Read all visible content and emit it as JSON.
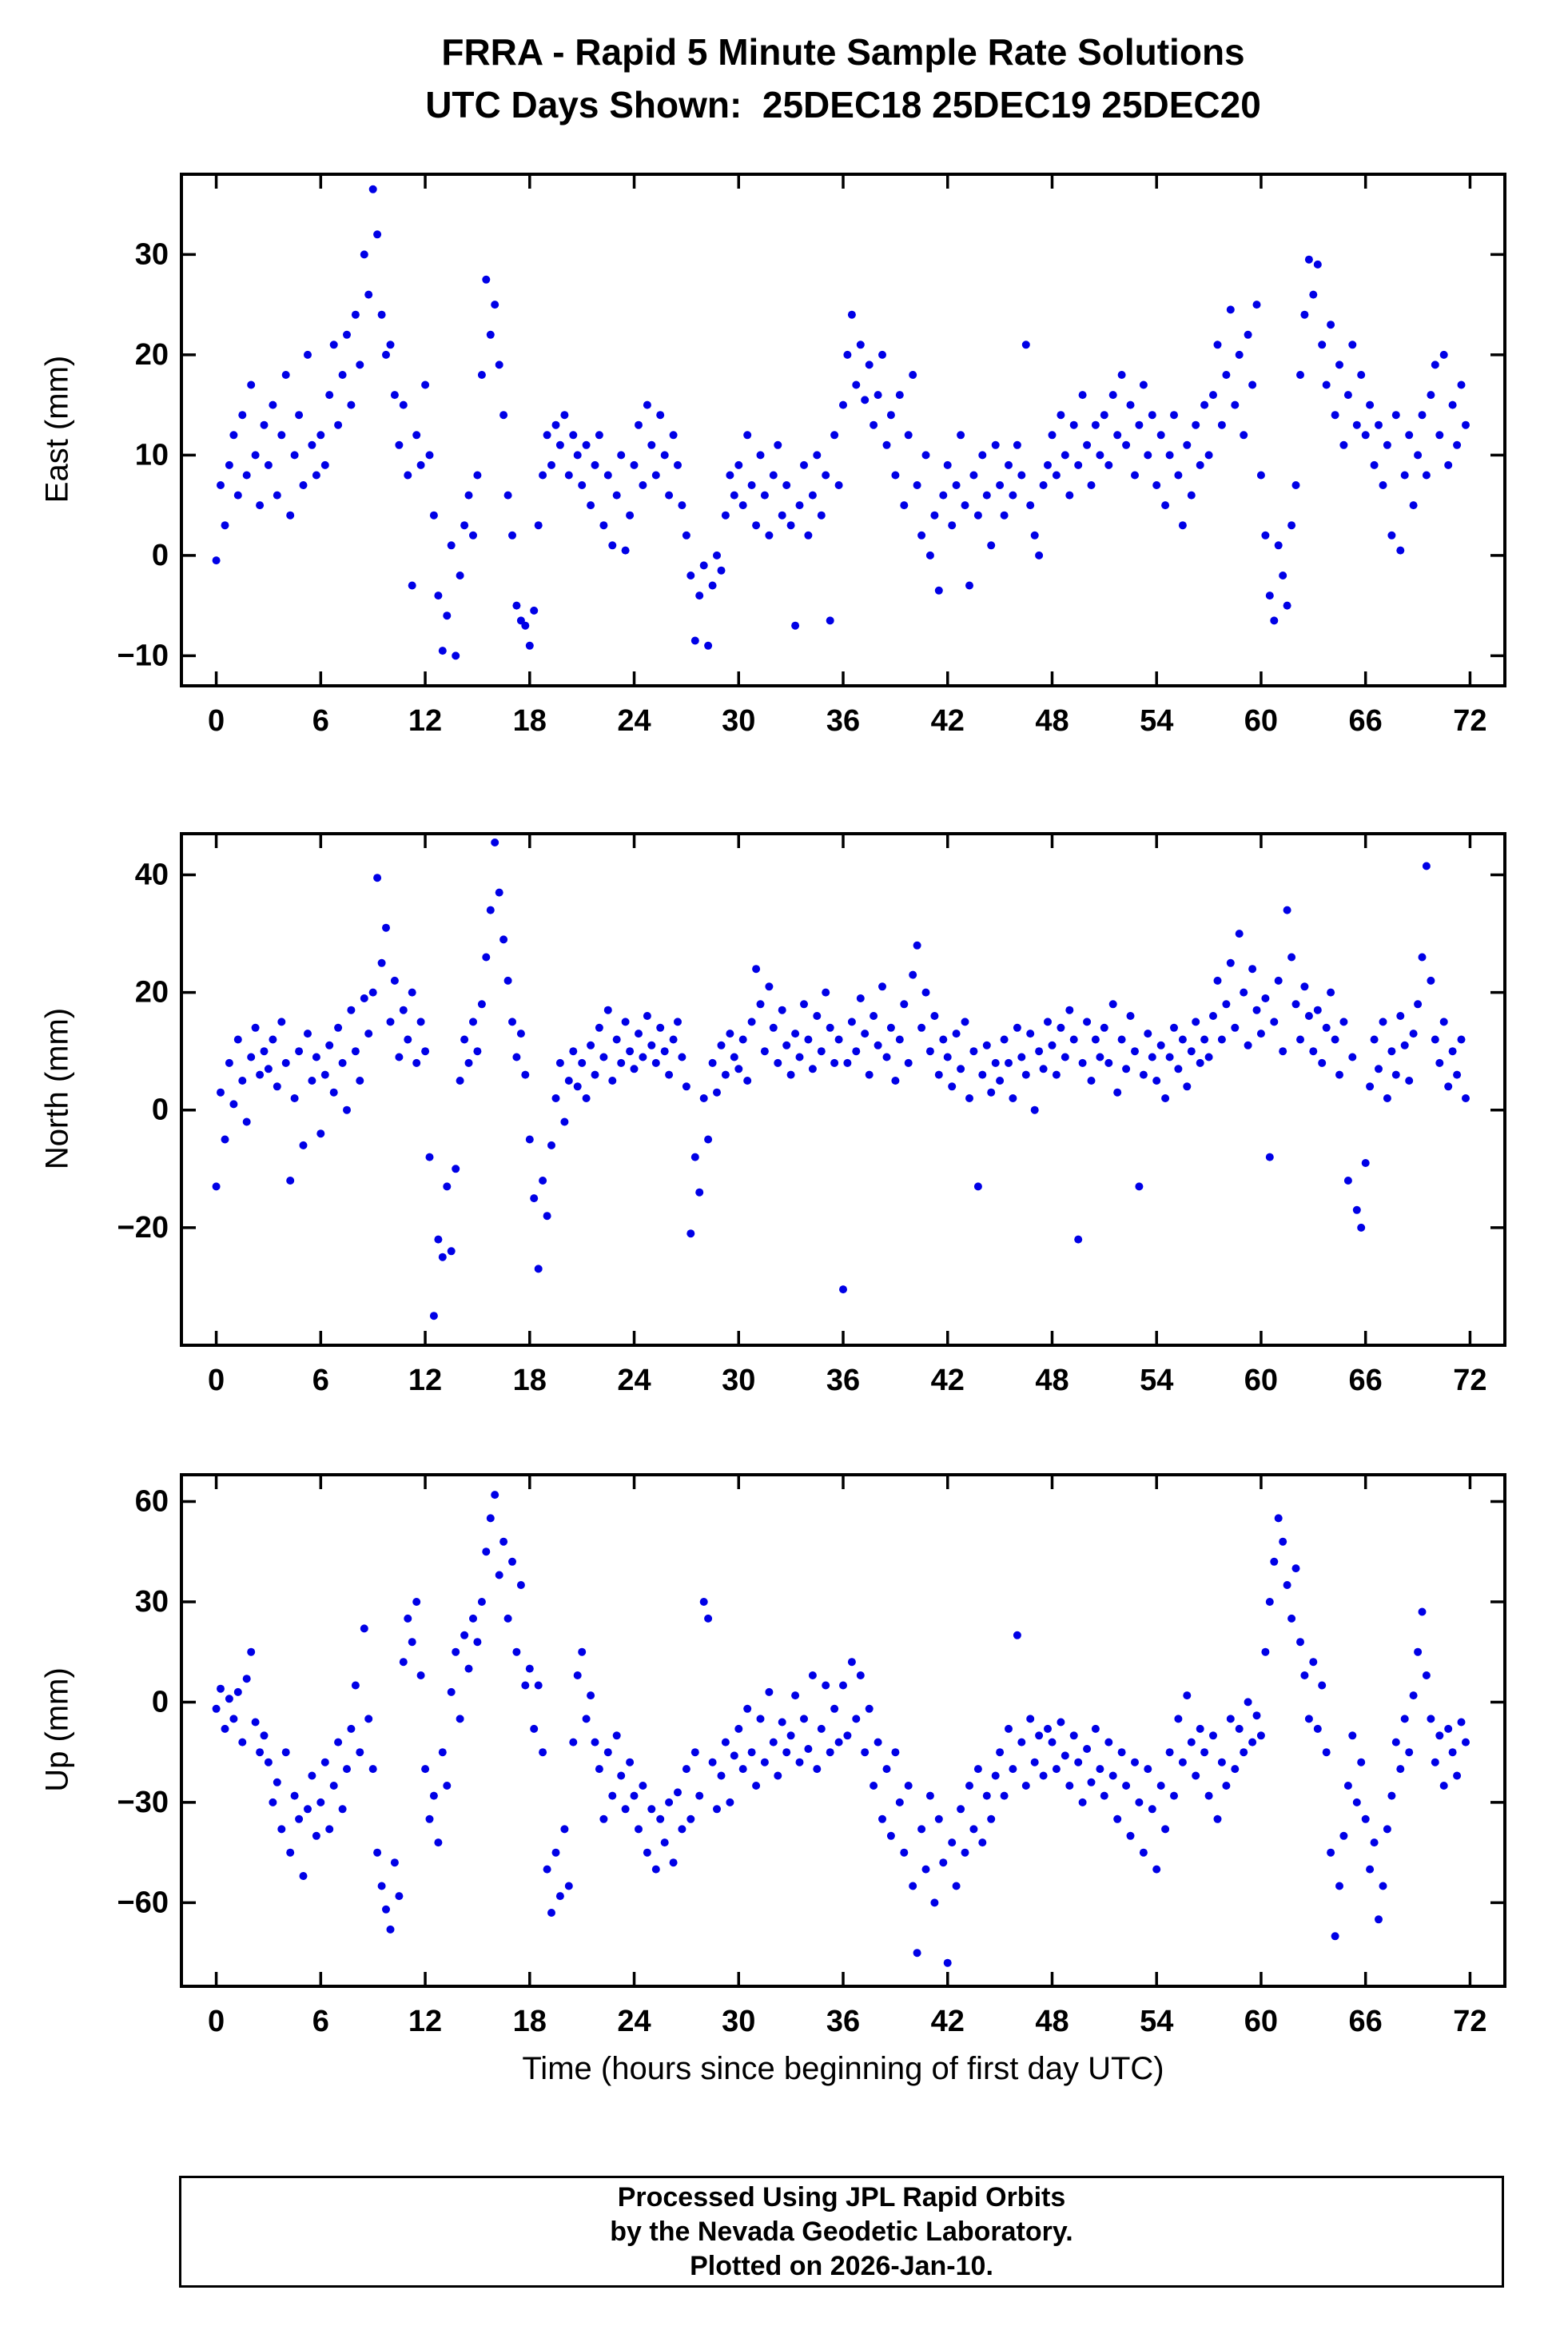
{
  "title": "FRRA - Rapid 5 Minute Sample Rate Solutions",
  "subtitle": "UTC Days Shown:  25DEC18 25DEC19 25DEC20",
  "footer": {
    "line1": "Processed Using JPL Rapid Orbits",
    "line2": "by the Nevada Geodetic Laboratory.",
    "line3": "Plotted on 2026-Jan-10."
  },
  "colors": {
    "points": "#0000e6",
    "axis": "#000000"
  },
  "x_axis": {
    "label": "Time (hours since beginning of first day UTC)",
    "ticks": [
      0,
      6,
      12,
      18,
      24,
      30,
      36,
      42,
      48,
      54,
      60,
      66,
      72
    ],
    "lim": [
      -2,
      74
    ]
  },
  "chart_data": [
    {
      "type": "scatter",
      "name": "east",
      "ylabel": "East (mm)",
      "ylim": [
        -13,
        38
      ],
      "yticks": [
        -10,
        0,
        10,
        20,
        30
      ],
      "x_start": 0,
      "dx": 0.25,
      "values": [
        -0.5,
        7,
        3,
        9,
        12,
        6,
        14,
        8,
        17,
        10,
        5,
        13,
        9,
        15,
        6,
        12,
        18,
        4,
        10,
        14,
        7,
        20,
        11,
        8,
        12,
        9,
        16,
        21,
        13,
        18,
        22,
        15,
        24,
        19,
        30,
        26,
        36.5,
        32,
        24,
        20,
        21,
        16,
        11,
        15,
        8,
        -3,
        12,
        9,
        17,
        10,
        4,
        -4,
        -9.5,
        -6,
        1,
        -10,
        -2,
        3,
        6,
        2,
        8,
        18,
        27.5,
        22,
        25,
        19,
        14,
        6,
        2,
        -5,
        -6.5,
        -7,
        -9,
        -5.5,
        3,
        8,
        12,
        9,
        13,
        11,
        14,
        8,
        12,
        10,
        7,
        11,
        5,
        9,
        12,
        3,
        8,
        1,
        6,
        10,
        0.5,
        4,
        9,
        13,
        7,
        15,
        11,
        8,
        14,
        10,
        6,
        12,
        9,
        5,
        2,
        -2,
        -8.5,
        -4,
        -1,
        -9,
        -3,
        0,
        -1.5,
        4,
        8,
        6,
        9,
        5,
        12,
        7,
        3,
        10,
        6,
        2,
        8,
        11,
        4,
        7,
        3,
        -7,
        5,
        9,
        2,
        6,
        10,
        4,
        8,
        -6.5,
        12,
        7,
        15,
        20,
        24,
        17,
        21,
        15.5,
        19,
        13,
        16,
        20,
        11,
        14,
        8,
        16,
        5,
        12,
        18,
        7,
        2,
        10,
        0,
        4,
        -3.5,
        6,
        9,
        3,
        7,
        12,
        5,
        -3,
        8,
        4,
        10,
        6,
        1,
        11,
        7,
        4,
        9,
        6,
        11,
        8,
        21,
        5,
        2,
        0,
        7,
        9,
        12,
        8,
        14,
        10,
        6,
        13,
        9,
        16,
        11,
        7,
        13,
        10,
        14,
        9,
        16,
        12,
        18,
        11,
        15,
        8,
        13,
        17,
        10,
        14,
        7,
        12,
        5,
        10,
        14,
        8,
        3,
        11,
        6,
        13,
        9,
        15,
        10,
        16,
        21,
        13,
        18,
        24.5,
        15,
        20,
        12,
        22,
        17,
        25,
        8,
        2,
        -4,
        -6.5,
        1,
        -2,
        -5,
        3,
        7,
        18,
        24,
        29.5,
        26,
        29,
        21,
        17,
        23,
        14,
        19,
        11,
        16,
        21,
        13,
        18,
        12,
        15,
        9,
        13,
        7,
        11,
        2,
        14,
        0.5,
        8,
        12,
        5,
        10,
        14,
        8,
        16,
        19,
        12,
        20,
        9,
        15,
        11,
        17,
        13
      ]
    },
    {
      "type": "scatter",
      "name": "north",
      "ylabel": "North (mm)",
      "ylim": [
        -40,
        47
      ],
      "yticks": [
        -20,
        0,
        20,
        40
      ],
      "x_start": 0,
      "dx": 0.25,
      "values": [
        -13,
        3,
        -5,
        8,
        1,
        12,
        5,
        -2,
        9,
        14,
        6,
        10,
        7,
        12,
        4,
        15,
        8,
        -12,
        2,
        10,
        -6,
        13,
        5,
        9,
        -4,
        6,
        11,
        3,
        14,
        8,
        0,
        17,
        10,
        5,
        19,
        13,
        20,
        39.5,
        25,
        31,
        15,
        22,
        9,
        17,
        12,
        20,
        8,
        15,
        10,
        -8,
        -35,
        -22,
        -25,
        -13,
        -24,
        -10,
        5,
        12,
        8,
        15,
        10,
        18,
        26,
        34,
        45.5,
        37,
        29,
        22,
        15,
        9,
        13,
        6,
        -5,
        -15,
        -27,
        -12,
        -18,
        -6,
        2,
        8,
        -2,
        5,
        10,
        4,
        8,
        2,
        11,
        6,
        14,
        9,
        17,
        5,
        12,
        8,
        15,
        10,
        7,
        13,
        9,
        16,
        11,
        8,
        14,
        10,
        6,
        12,
        15,
        9,
        4,
        -21,
        -8,
        -14,
        2,
        -5,
        8,
        3,
        11,
        6,
        13,
        9,
        7,
        12,
        5,
        15,
        24,
        18,
        10,
        21,
        14,
        8,
        17,
        11,
        6,
        13,
        9,
        18,
        12,
        7,
        16,
        10,
        20,
        14,
        8,
        12,
        -30.5,
        8,
        15,
        10,
        19,
        13,
        6,
        16,
        11,
        21,
        9,
        14,
        5,
        12,
        18,
        8,
        23,
        28,
        14,
        20,
        10,
        16,
        6,
        12,
        9,
        4,
        13,
        7,
        15,
        2,
        10,
        -13,
        6,
        11,
        3,
        8,
        5,
        12,
        8,
        2,
        14,
        9,
        6,
        13,
        0,
        10,
        7,
        15,
        11,
        6,
        14,
        9,
        17,
        12,
        -22,
        8,
        15,
        5,
        12,
        9,
        14,
        8,
        18,
        3,
        12,
        7,
        16,
        10,
        -13,
        6,
        13,
        9,
        5,
        11,
        2,
        9,
        14,
        7,
        12,
        4,
        10,
        15,
        8,
        12,
        9,
        16,
        22,
        12,
        18,
        25,
        14,
        30,
        20,
        11,
        24,
        17,
        13,
        19,
        -8,
        15,
        22,
        10,
        34,
        26,
        18,
        12,
        21,
        16,
        10,
        17,
        8,
        14,
        20,
        12,
        6,
        15,
        -12,
        9,
        -17,
        -20,
        -9,
        4,
        12,
        7,
        15,
        2,
        10,
        6,
        16,
        11,
        5,
        13,
        18,
        26,
        41.5,
        22,
        12,
        8,
        15,
        4,
        10,
        6,
        12,
        2
      ]
    },
    {
      "type": "scatter",
      "name": "up",
      "ylabel": "Up (mm)",
      "ylim": [
        -85,
        68
      ],
      "yticks": [
        -60,
        -30,
        0,
        30,
        60
      ],
      "x_start": 0,
      "dx": 0.25,
      "values": [
        -2,
        4,
        -8,
        1,
        -5,
        3,
        -12,
        7,
        15,
        -6,
        -15,
        -10,
        -18,
        -30,
        -24,
        -38,
        -15,
        -45,
        -28,
        -35,
        -52,
        -32,
        -22,
        -40,
        -30,
        -18,
        -38,
        -25,
        -12,
        -32,
        -20,
        -8,
        5,
        -15,
        22,
        -5,
        -20,
        -45,
        -55,
        -62,
        -68,
        -48,
        -58,
        12,
        25,
        18,
        30,
        8,
        -20,
        -35,
        -28,
        -42,
        -15,
        -25,
        3,
        15,
        -5,
        20,
        10,
        25,
        18,
        30,
        45,
        55,
        62,
        38,
        48,
        25,
        42,
        15,
        35,
        5,
        10,
        -8,
        5,
        -15,
        -50,
        -63,
        -45,
        -58,
        -38,
        -55,
        -12,
        8,
        15,
        -5,
        2,
        -12,
        -20,
        -35,
        -15,
        -28,
        -10,
        -22,
        -32,
        -18,
        -28,
        -38,
        -25,
        -45,
        -32,
        -50,
        -35,
        -42,
        -30,
        -48,
        -27,
        -38,
        -20,
        -35,
        -15,
        -28,
        30,
        25,
        -18,
        -32,
        -22,
        -12,
        -30,
        -16,
        -8,
        -20,
        -2,
        -15,
        -25,
        -5,
        -18,
        3,
        -12,
        -22,
        -6,
        -15,
        -10,
        2,
        -18,
        -5,
        -14,
        8,
        -20,
        -8,
        5,
        -15,
        -2,
        -12,
        5,
        -10,
        12,
        -5,
        8,
        -15,
        -2,
        -25,
        -12,
        -35,
        -20,
        -40,
        -15,
        -30,
        -45,
        -25,
        -55,
        -75,
        -38,
        -50,
        -28,
        -60,
        -35,
        -48,
        -78,
        -42,
        -55,
        -32,
        -45,
        -25,
        -38,
        -20,
        -42,
        -28,
        -35,
        -22,
        -15,
        -28,
        -8,
        -20,
        20,
        -12,
        -25,
        -5,
        -18,
        -10,
        -22,
        -8,
        -12,
        -20,
        -6,
        -16,
        -25,
        -10,
        -18,
        -30,
        -14,
        -24,
        -8,
        -20,
        -28,
        -12,
        -22,
        -35,
        -15,
        -25,
        -40,
        -18,
        -30,
        -45,
        -20,
        -32,
        -50,
        -25,
        -38,
        -15,
        -28,
        -5,
        -18,
        2,
        -12,
        -22,
        -8,
        -15,
        -28,
        -10,
        -35,
        -18,
        -25,
        -5,
        -20,
        -8,
        -15,
        0,
        -12,
        -4,
        -10,
        15,
        30,
        42,
        55,
        48,
        35,
        25,
        40,
        18,
        8,
        -5,
        12,
        -8,
        5,
        -15,
        -45,
        -70,
        -55,
        -40,
        -25,
        -10,
        -30,
        -18,
        -35,
        -50,
        -42,
        -65,
        -55,
        -38,
        -28,
        -12,
        -20,
        -5,
        -15,
        2,
        15,
        27,
        8,
        -5,
        -18,
        -10,
        -25,
        -8,
        -15,
        -22,
        -6,
        -12
      ]
    }
  ]
}
